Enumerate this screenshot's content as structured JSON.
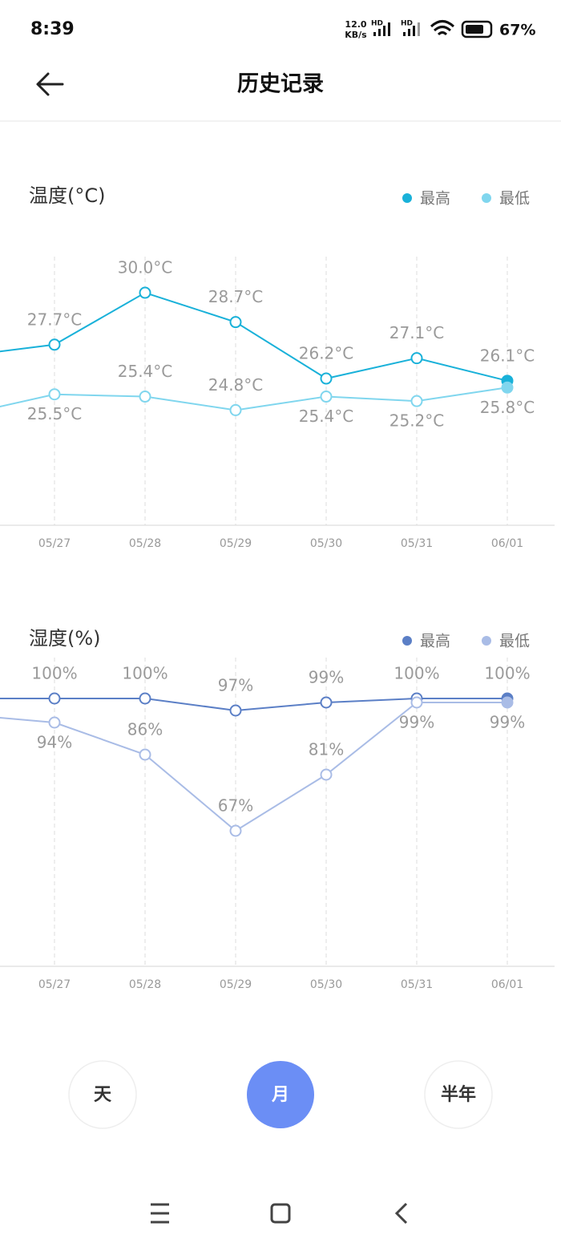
{
  "status_bar": {
    "time": "8:39",
    "speed": "12.0",
    "speed_unit": "KB/s",
    "network_1": "HD",
    "network_2": "HD",
    "battery": "67%"
  },
  "header": {
    "title": "历史记录"
  },
  "chart_data": [
    {
      "type": "line",
      "title": "温度(°C)",
      "categories": [
        null,
        "05/27",
        "05/28",
        "05/29",
        "05/30",
        "05/31",
        "06/01"
      ],
      "series": [
        {
          "name": "最高",
          "color": "#19b1d9",
          "values": [
            27.2,
            27.7,
            30.0,
            28.7,
            26.2,
            27.1,
            26.1
          ],
          "value_labels": [
            null,
            "27.7°C",
            "30.0°C",
            "28.7°C",
            "26.2°C",
            "27.1°C",
            "26.1°C"
          ]
        },
        {
          "name": "最低",
          "color": "#80d6ee",
          "values": [
            24.6,
            25.5,
            25.4,
            24.8,
            25.4,
            25.2,
            25.8
          ],
          "value_labels": [
            null,
            "25.5°C",
            "25.4°C",
            "24.8°C",
            "25.4°C",
            "25.2°C",
            "25.8°C"
          ]
        }
      ],
      "ylim": [
        19.7,
        31.6
      ]
    },
    {
      "type": "line",
      "title": "湿度(%)",
      "categories": [
        null,
        "05/27",
        "05/28",
        "05/29",
        "05/30",
        "05/31",
        "06/01"
      ],
      "series": [
        {
          "name": "最高",
          "color": "#5b7fc6",
          "values": [
            100,
            100,
            100,
            97,
            99,
            100,
            100
          ],
          "value_labels": [
            null,
            "100%",
            "100%",
            "97%",
            "99%",
            "100%",
            "100%"
          ]
        },
        {
          "name": "最低",
          "color": "#a9bce6",
          "values": [
            96,
            94,
            86,
            67,
            81,
            99,
            99
          ],
          "value_labels": [
            null,
            "94%",
            "86%",
            "67%",
            "81%",
            "99%",
            "99%"
          ]
        }
      ],
      "ylim": [
        33.2,
        110.2
      ]
    }
  ],
  "period_buttons": [
    "天",
    "月",
    "半年"
  ]
}
